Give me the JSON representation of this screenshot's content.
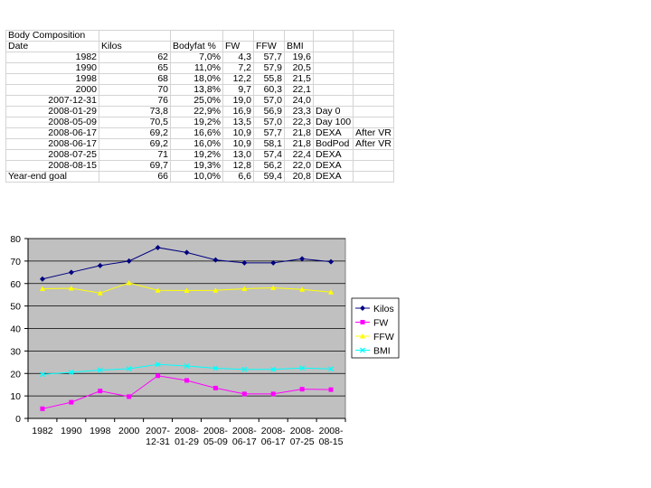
{
  "sheet": {
    "title": "Body Composition",
    "headers": [
      "Date",
      "Kilos",
      "Bodyfat %",
      "FW",
      "FFW",
      "BMI",
      "",
      ""
    ],
    "rows": [
      [
        "1982",
        "62",
        "7,0%",
        "4,3",
        "57,7",
        "19,6",
        "",
        ""
      ],
      [
        "1990",
        "65",
        "11,0%",
        "7,2",
        "57,9",
        "20,5",
        "",
        ""
      ],
      [
        "1998",
        "68",
        "18,0%",
        "12,2",
        "55,8",
        "21,5",
        "",
        ""
      ],
      [
        "2000",
        "70",
        "13,8%",
        "9,7",
        "60,3",
        "22,1",
        "",
        ""
      ],
      [
        "2007-12-31",
        "76",
        "25,0%",
        "19,0",
        "57,0",
        "24,0",
        "",
        ""
      ],
      [
        "2008-01-29",
        "73,8",
        "22,9%",
        "16,9",
        "56,9",
        "23,3",
        "Day 0",
        ""
      ],
      [
        "2008-05-09",
        "70,5",
        "19,2%",
        "13,5",
        "57,0",
        "22,3",
        "Day 100",
        ""
      ],
      [
        "2008-06-17",
        "69,2",
        "16,6%",
        "10,9",
        "57,7",
        "21,8",
        "DEXA",
        "After VR"
      ],
      [
        "2008-06-17",
        "69,2",
        "16,0%",
        "10,9",
        "58,1",
        "21,8",
        "BodPod",
        "After VR"
      ],
      [
        "2008-07-25",
        "71",
        "19,2%",
        "13,0",
        "57,4",
        "22,4",
        "DEXA",
        ""
      ],
      [
        "2008-08-15",
        "69,7",
        "19,3%",
        "12,8",
        "56,2",
        "22,0",
        "DEXA",
        ""
      ],
      [
        "Year-end goal",
        "66",
        "10,0%",
        "6,6",
        "59,4",
        "20,8",
        "DEXA",
        ""
      ]
    ]
  },
  "chart_data": {
    "type": "line",
    "categories": [
      [
        "1982"
      ],
      [
        "1990"
      ],
      [
        "1998"
      ],
      [
        "2000"
      ],
      [
        "2007-",
        "12-31"
      ],
      [
        "2008-",
        "01-29"
      ],
      [
        "2008-",
        "05-09"
      ],
      [
        "2008-",
        "06-17"
      ],
      [
        "2008-",
        "06-17"
      ],
      [
        "2008-",
        "07-25"
      ],
      [
        "2008-",
        "08-15"
      ]
    ],
    "ylim": [
      0,
      80
    ],
    "yticks": [
      0,
      10,
      20,
      30,
      40,
      50,
      60,
      70,
      80
    ],
    "grid": true,
    "legend_position": "right",
    "plot_background": "#c0c0c0",
    "series": [
      {
        "name": "Kilos",
        "color": "#000080",
        "marker": "diamond",
        "values": [
          62,
          65,
          68,
          70,
          76,
          73.8,
          70.5,
          69.2,
          69.2,
          71,
          69.7
        ]
      },
      {
        "name": "FW",
        "color": "#ff00ff",
        "marker": "square",
        "values": [
          4.3,
          7.2,
          12.2,
          9.7,
          19.0,
          16.9,
          13.5,
          10.9,
          10.9,
          13.0,
          12.8
        ]
      },
      {
        "name": "FFW",
        "color": "#ffff00",
        "marker": "triangle",
        "values": [
          57.7,
          57.9,
          55.8,
          60.3,
          57.0,
          56.9,
          57.0,
          57.7,
          58.1,
          57.4,
          56.2
        ]
      },
      {
        "name": "BMI",
        "color": "#00ffff",
        "marker": "x",
        "values": [
          19.6,
          20.5,
          21.5,
          22.1,
          24.0,
          23.3,
          22.3,
          21.8,
          21.8,
          22.4,
          22.0
        ]
      }
    ]
  }
}
